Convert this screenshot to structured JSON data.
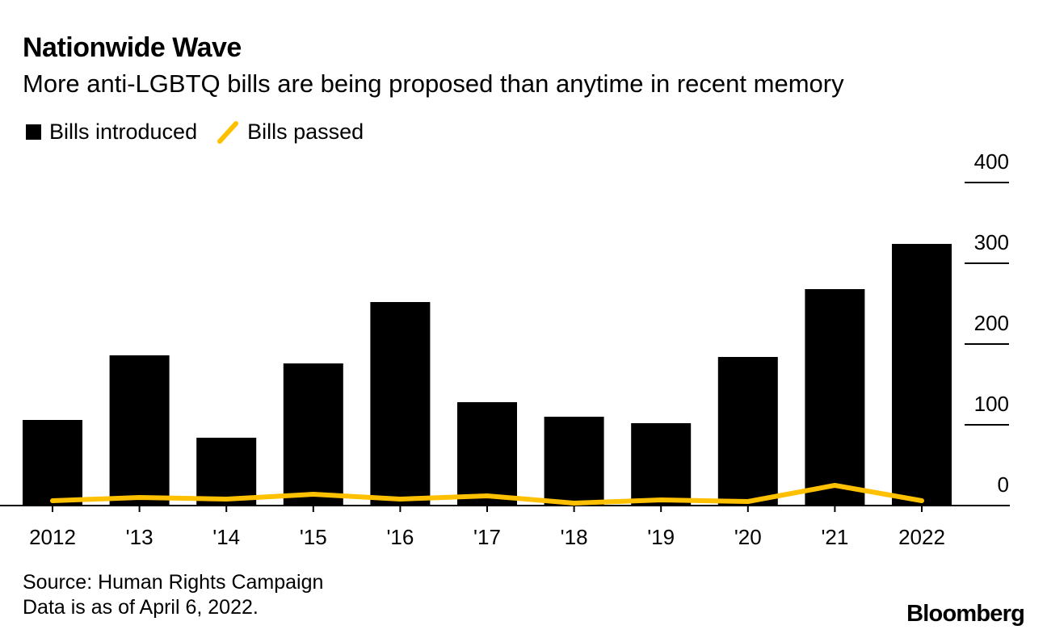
{
  "header": {
    "title": "Nationwide Wave",
    "subtitle": "More anti-LGBTQ bills are being proposed than anytime in recent memory"
  },
  "legend": {
    "introduced": "Bills introduced",
    "passed": "Bills passed"
  },
  "footer": {
    "source": "Source: Human Rights Campaign",
    "note": "Data is as of April 6, 2022.",
    "brand": "Bloomberg"
  },
  "colors": {
    "bars": "#000000",
    "line": "#FFC000",
    "axis": "#000000"
  },
  "chart_data": {
    "type": "bar",
    "title": "Nationwide Wave",
    "subtitle": "More anti-LGBTQ bills are being proposed than anytime in recent memory",
    "categories": [
      "2012",
      "'13",
      "'14",
      "'15",
      "'16",
      "'17",
      "'18",
      "'19",
      "'20",
      "'21",
      "2022"
    ],
    "series": [
      {
        "name": "Bills introduced",
        "type": "bar",
        "values": [
          106,
          186,
          84,
          176,
          252,
          128,
          110,
          102,
          184,
          268,
          324
        ]
      },
      {
        "name": "Bills passed",
        "type": "line",
        "values": [
          6,
          10,
          8,
          14,
          8,
          12,
          3,
          7,
          5,
          25,
          6
        ]
      }
    ],
    "ylim": [
      0,
      400
    ],
    "yticks": [
      0,
      100,
      200,
      300,
      400
    ],
    "y_axis_side": "right",
    "xlabel": "",
    "ylabel": "",
    "legend": "top-left",
    "grid": false
  }
}
